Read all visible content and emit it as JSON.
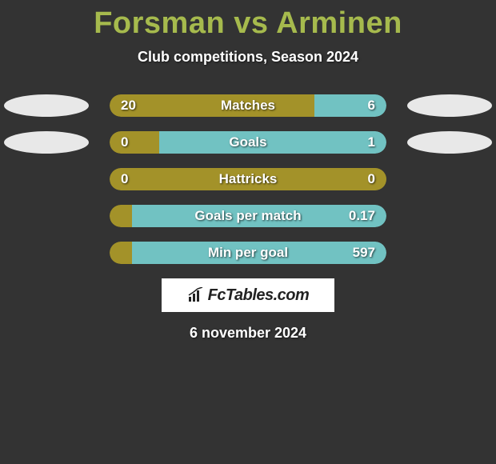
{
  "title": "Forsman vs Arminen",
  "subtitle": "Club competitions, Season 2024",
  "footer_date": "6 november 2024",
  "brand": "FcTables.com",
  "colors": {
    "background": "#333333",
    "accent_title": "#a6ba4d",
    "left_bar": "#a39229",
    "right_bar": "#71c2c2",
    "oval_left": "#e8e8e8",
    "oval_right": "#e8e8e8",
    "text": "#ffffff",
    "brand_bg": "#ffffff",
    "brand_text": "#222222"
  },
  "rows": [
    {
      "label": "Matches",
      "left_value": "20",
      "right_value": "6",
      "left_pct": 74,
      "right_pct": 26,
      "left_color": "#a39229",
      "right_color": "#71c2c2",
      "show_ovals": true
    },
    {
      "label": "Goals",
      "left_value": "0",
      "right_value": "1",
      "left_pct": 18,
      "right_pct": 82,
      "left_color": "#a39229",
      "right_color": "#71c2c2",
      "show_ovals": true
    },
    {
      "label": "Hattricks",
      "left_value": "0",
      "right_value": "0",
      "left_pct": 100,
      "right_pct": 0,
      "left_color": "#a39229",
      "right_color": "#71c2c2",
      "show_ovals": false
    },
    {
      "label": "Goals per match",
      "left_value": "",
      "right_value": "0.17",
      "left_pct": 8,
      "right_pct": 92,
      "left_color": "#a39229",
      "right_color": "#71c2c2",
      "show_ovals": false
    },
    {
      "label": "Min per goal",
      "left_value": "",
      "right_value": "597",
      "left_pct": 8,
      "right_pct": 92,
      "left_color": "#a39229",
      "right_color": "#71c2c2",
      "show_ovals": false
    }
  ]
}
